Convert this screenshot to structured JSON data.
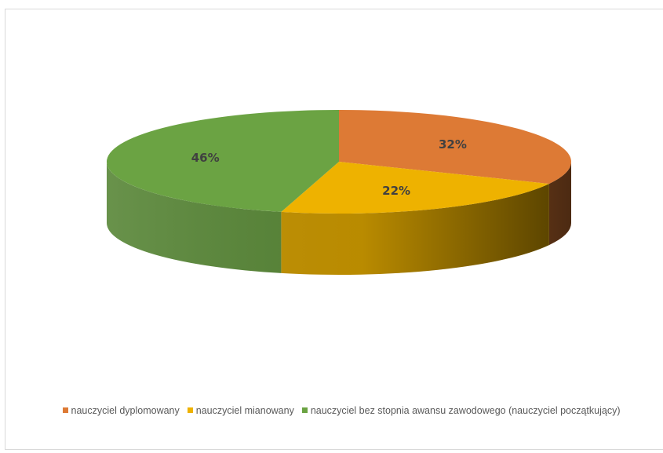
{
  "chart_data": {
    "type": "pie",
    "title": "",
    "categories": [
      "nauczyciel dyplomowany",
      "nauczyciel mianowany",
      "nauczyciel bez stopnia awansu zawodowego (nauczyciel początkujący)"
    ],
    "values": [
      32,
      22,
      46
    ],
    "data_labels": [
      "32%",
      "22%",
      "46%"
    ],
    "colors": [
      "#DD7A35",
      "#EEB200",
      "#6BA343"
    ],
    "legend_position": "bottom",
    "style": "3d"
  }
}
